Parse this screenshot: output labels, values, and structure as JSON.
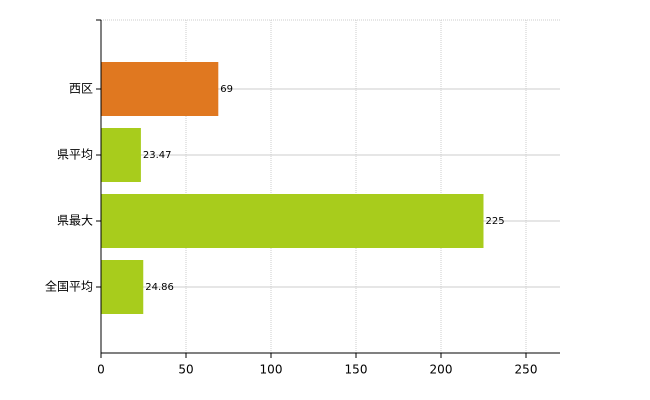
{
  "chart_data": {
    "type": "hbar",
    "categories": [
      "西区",
      "県平均",
      "県最大",
      "全国平均"
    ],
    "values": [
      69,
      23.47,
      225,
      24.86
    ],
    "colors": [
      "#e07820",
      "#a8cc1c",
      "#a8cc1c",
      "#a8cc1c"
    ],
    "xlim": [
      0,
      270
    ],
    "xticks": [
      0,
      50,
      100,
      150,
      200,
      250
    ],
    "grid": true
  }
}
